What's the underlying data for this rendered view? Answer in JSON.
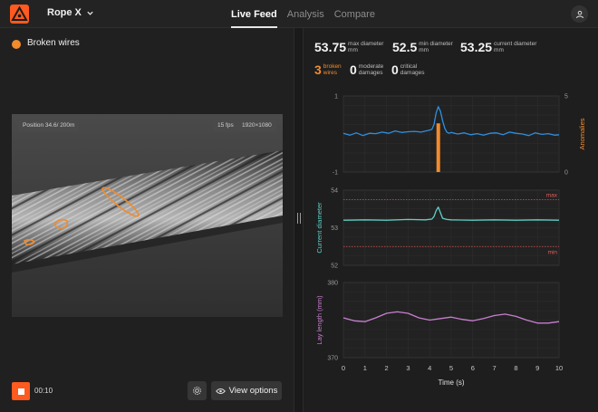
{
  "app": {
    "rope_selector": "Rope X"
  },
  "tabs": [
    {
      "label": "Live Feed",
      "active": true
    },
    {
      "label": "Analysis",
      "active": false
    },
    {
      "label": "Compare",
      "active": false
    }
  ],
  "left": {
    "alert_label": "Broken wires",
    "alert_color": "#f28b2c",
    "video": {
      "position": "Position 34.6/ 200m",
      "fps": "15 fps",
      "resolution": "1920×1080"
    },
    "timer": "00:10",
    "view_options": "View options"
  },
  "metrics": {
    "max_diameter": {
      "value": "53.75",
      "label_1": "max diameter",
      "label_2": "mm"
    },
    "min_diameter": {
      "value": "52.5",
      "label_1": "min diameter",
      "label_2": "mm"
    },
    "current_diameter": {
      "value": "53.25",
      "label_1": "current diameter",
      "label_2": "mm"
    }
  },
  "damages": {
    "broken": {
      "value": "3",
      "label_1": "broken",
      "label_2": "wires"
    },
    "moderate": {
      "value": "0",
      "label_1": "moderate",
      "label_2": "damages"
    },
    "critical": {
      "value": "0",
      "label_1": "critical",
      "label_2": "damages"
    }
  },
  "chart_data": [
    {
      "type": "line",
      "ylabel": "",
      "y2label": "Anomalies",
      "ylim": [
        -1,
        1
      ],
      "y2lim": [
        0,
        5
      ],
      "xlim": [
        0,
        10
      ],
      "yticks": [
        "1",
        "-1"
      ],
      "y2ticks": [
        "5",
        "0"
      ],
      "series": [
        {
          "color": "#2f8fe0",
          "x": [
            0,
            0.3,
            0.6,
            0.9,
            1.2,
            1.5,
            1.8,
            2.1,
            2.4,
            2.7,
            3.0,
            3.3,
            3.6,
            3.9,
            4.1,
            4.2,
            4.3,
            4.4,
            4.5,
            4.6,
            4.7,
            4.8,
            4.9,
            5.0,
            5.3,
            5.6,
            5.9,
            6.2,
            6.5,
            6.8,
            7.1,
            7.4,
            7.7,
            8.0,
            8.3,
            8.6,
            8.9,
            9.2,
            9.5,
            9.8,
            10
          ],
          "y": [
            0.02,
            -0.03,
            0.03,
            -0.04,
            0.02,
            0.01,
            0.05,
            0.02,
            0.08,
            0.04,
            0.06,
            0.07,
            0.05,
            0.09,
            0.12,
            0.25,
            0.55,
            0.72,
            0.6,
            0.35,
            0.15,
            0.05,
            0.02,
            0.04,
            0.0,
            0.03,
            -0.02,
            0.01,
            -0.03,
            0.02,
            0.03,
            -0.02,
            0.05,
            0.02,
            0.0,
            -0.04,
            0.03,
            -0.01,
            0.01,
            -0.03,
            -0.02
          ]
        }
      ],
      "anomaly_bars": [
        {
          "x": 4.4,
          "value": 3.2,
          "color": "#f28b2c"
        }
      ]
    },
    {
      "type": "line",
      "ylabel": "Current diameter",
      "ylim": [
        52,
        54
      ],
      "yticks": [
        "54",
        "53",
        "52"
      ],
      "xlim": [
        0,
        10
      ],
      "limit_lines": [
        {
          "label": "max",
          "value": 53.75
        },
        {
          "label": "min",
          "value": 52.5
        }
      ],
      "series": [
        {
          "color": "#5fd1c6",
          "x": [
            0,
            1,
            2,
            3,
            3.8,
            4.1,
            4.2,
            4.3,
            4.4,
            4.5,
            4.6,
            4.8,
            5,
            6,
            7,
            8,
            9,
            10
          ],
          "y": [
            53.2,
            53.21,
            53.2,
            53.22,
            53.21,
            53.23,
            53.3,
            53.45,
            53.55,
            53.4,
            53.25,
            53.22,
            53.21,
            53.2,
            53.21,
            53.2,
            53.21,
            53.2
          ]
        }
      ]
    },
    {
      "type": "line",
      "ylabel": "Lay length (mm)",
      "ylim": [
        370,
        380
      ],
      "yticks": [
        "380",
        "370"
      ],
      "xlim": [
        0,
        10
      ],
      "xlabel": "Time (s)",
      "xticks": [
        "0",
        "1",
        "2",
        "3",
        "4",
        "5",
        "6",
        "7",
        "8",
        "9",
        "10"
      ],
      "series": [
        {
          "color": "#c87fd0",
          "x": [
            0,
            0.5,
            1,
            1.5,
            2,
            2.5,
            3,
            3.5,
            4,
            4.5,
            5,
            5.5,
            6,
            6.5,
            7,
            7.5,
            8,
            8.5,
            9,
            9.5,
            10
          ],
          "y": [
            375.3,
            374.9,
            374.8,
            375.3,
            375.9,
            376.1,
            375.9,
            375.3,
            375.0,
            375.2,
            375.4,
            375.1,
            374.9,
            375.2,
            375.6,
            375.8,
            375.5,
            375.0,
            374.6,
            374.6,
            374.8
          ]
        }
      ]
    }
  ]
}
